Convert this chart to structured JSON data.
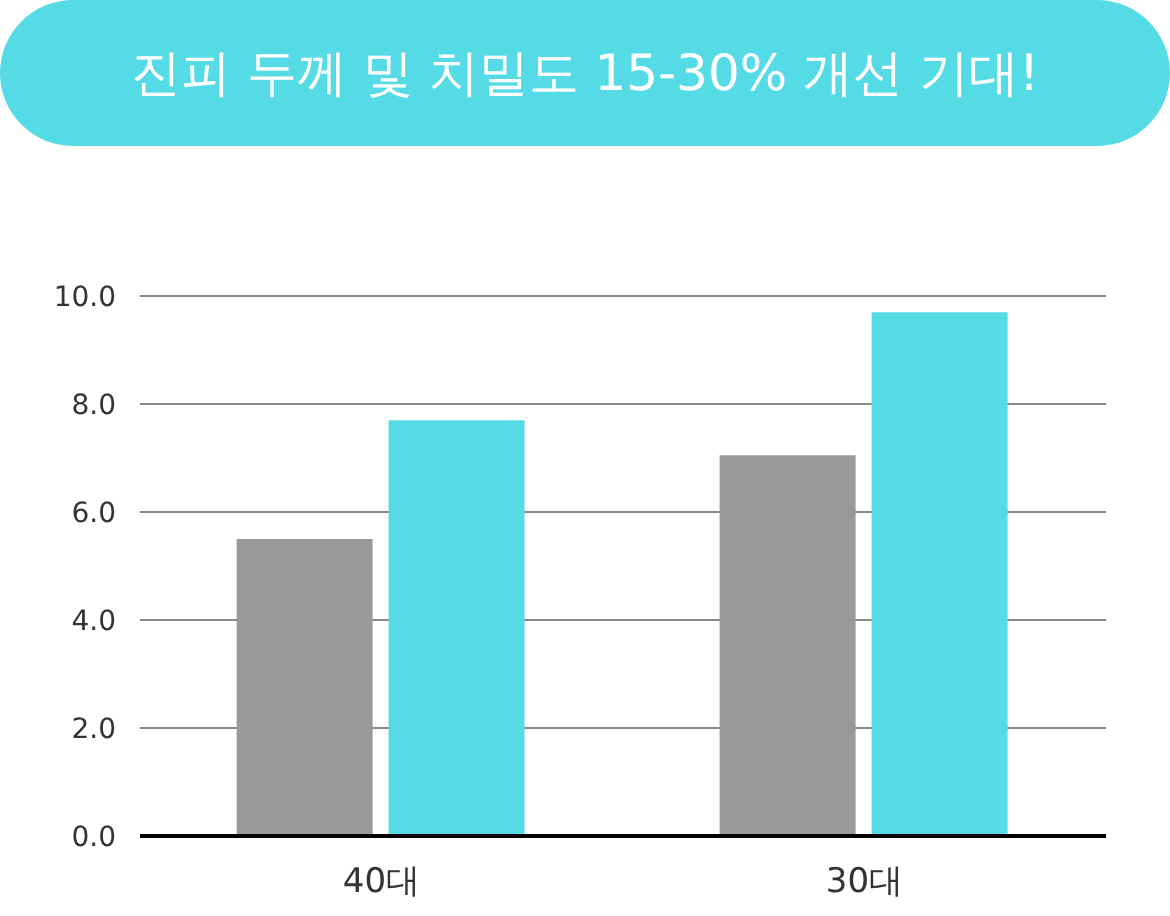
{
  "chart_data": {
    "type": "bar",
    "title": "진피 두께 및 치밀도 15-30% 개선 기대!",
    "categories": [
      "40대",
      "30대"
    ],
    "series": [
      {
        "color": "#999999",
        "values": [
          5.5,
          7.05
        ]
      },
      {
        "color": "#55dbe6",
        "values": [
          7.7,
          9.7
        ]
      }
    ],
    "ylim": [
      0,
      10
    ],
    "yticks": [
      {
        "value": 0,
        "label": "0.0"
      },
      {
        "value": 2,
        "label": "2.0"
      },
      {
        "value": 4,
        "label": "4.0"
      },
      {
        "value": 6,
        "label": "6.0"
      },
      {
        "value": 8,
        "label": "8.0"
      },
      {
        "value": 10,
        "label": "10.0"
      }
    ],
    "grid": "y"
  }
}
